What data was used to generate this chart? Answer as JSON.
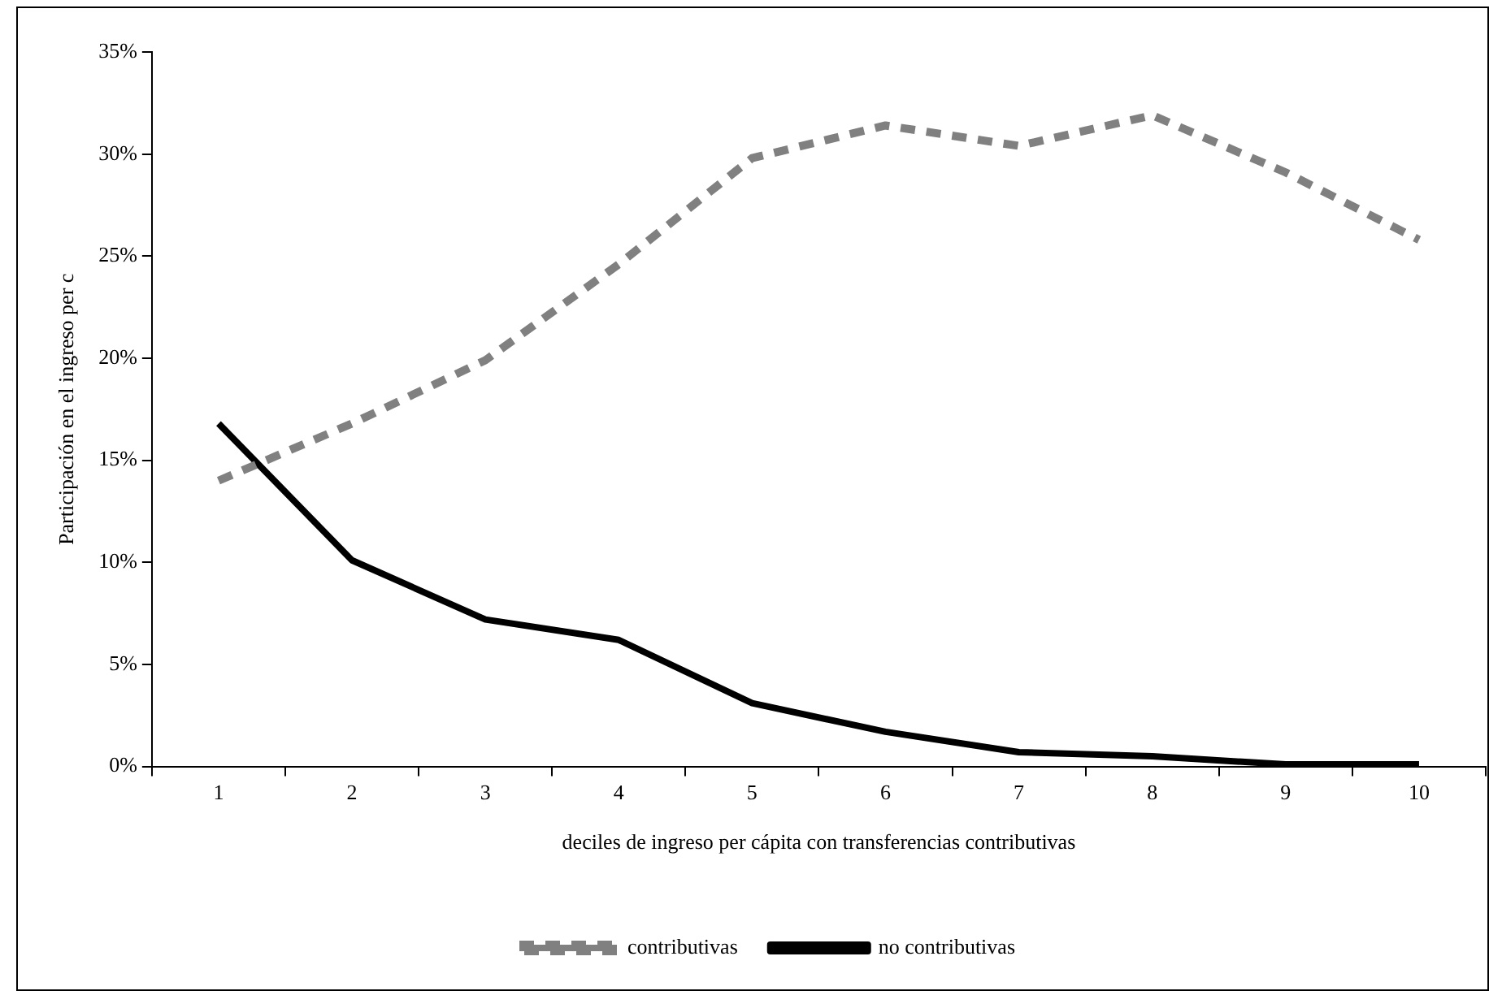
{
  "chart_data": {
    "type": "line",
    "xlabel": "deciles de ingreso per cápita con transferencias contributivas",
    "ylabel": "Participación en el ingreso per c",
    "categories": [
      "1",
      "2",
      "3",
      "4",
      "5",
      "6",
      "7",
      "8",
      "9",
      "10"
    ],
    "series": [
      {
        "name": "contributivas",
        "color": "#808080",
        "line_style": "dashed",
        "values": [
          14.0,
          16.8,
          19.9,
          24.6,
          29.8,
          31.4,
          30.4,
          31.9,
          29.1,
          25.8
        ]
      },
      {
        "name": "no contributivas",
        "color": "#000000",
        "line_style": "solid",
        "values": [
          16.8,
          10.1,
          7.2,
          6.2,
          3.1,
          1.7,
          0.7,
          0.5,
          0.1,
          0.1
        ]
      }
    ],
    "ylim": [
      0,
      35
    ],
    "yticks": [
      {
        "value": 0,
        "label": "0%"
      },
      {
        "value": 5,
        "label": "5%"
      },
      {
        "value": 10,
        "label": "10%"
      },
      {
        "value": 15,
        "label": "15%"
      },
      {
        "value": 20,
        "label": "20%"
      },
      {
        "value": 25,
        "label": "25%"
      },
      {
        "value": 30,
        "label": "30%"
      },
      {
        "value": 35,
        "label": "35%"
      }
    ],
    "grid": false,
    "legend": "bottom",
    "marker": "none"
  }
}
